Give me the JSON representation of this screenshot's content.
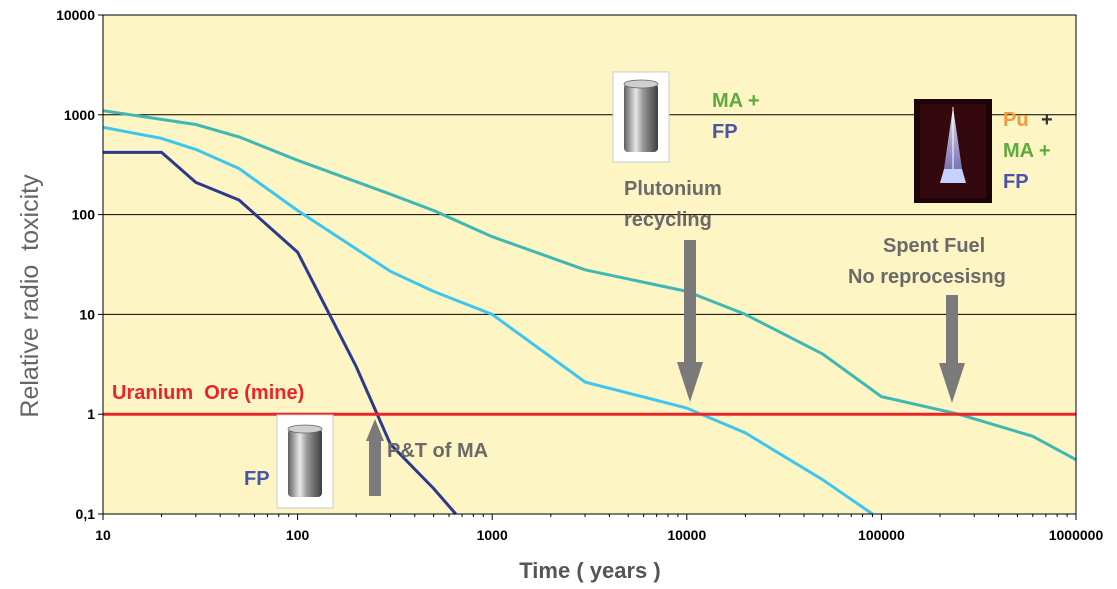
{
  "chart_data": {
    "type": "line",
    "xscale": "log",
    "yscale": "log",
    "xlim": [
      10,
      1000000
    ],
    "ylim": [
      0.1,
      10000
    ],
    "xlabel": "Time ( years )",
    "ylabel": "Relative radio  toxicity",
    "x_ticks": [
      "10",
      "100",
      "1000",
      "10000",
      "100000",
      "1000000"
    ],
    "y_ticks": [
      "0,1",
      "1",
      "10",
      "100",
      "1000",
      "10000"
    ],
    "grid": "horizontal",
    "colors": {
      "plot_bg": "#fdf5c4",
      "fp": "#2b3a8f",
      "pu_recycling": "#3ec6ee",
      "spent_fuel": "#3fb7b4",
      "ore": "#e8262a",
      "arrow": "#7a7a7a",
      "fp_text": "#4a55a8",
      "ma_text": "#5dab3c",
      "pu_text": "#f39a3c",
      "grey_text": "#6a6a6a"
    },
    "series": [
      {
        "key": "fp",
        "points": [
          [
            10,
            420
          ],
          [
            20,
            420
          ],
          [
            30,
            210
          ],
          [
            50,
            140
          ],
          [
            100,
            42
          ],
          [
            200,
            3
          ],
          [
            300,
            0.5
          ],
          [
            500,
            0.18
          ],
          [
            650,
            0.1
          ]
        ]
      },
      {
        "key": "pu_recycling",
        "points": [
          [
            10,
            750
          ],
          [
            20,
            580
          ],
          [
            30,
            450
          ],
          [
            50,
            290
          ],
          [
            100,
            110
          ],
          [
            300,
            27
          ],
          [
            500,
            17
          ],
          [
            1000,
            10
          ],
          [
            3000,
            2.1
          ],
          [
            10000,
            1.15
          ],
          [
            20000,
            0.65
          ],
          [
            50000,
            0.22
          ],
          [
            90000,
            0.1
          ]
        ]
      },
      {
        "key": "spent_fuel",
        "points": [
          [
            10,
            1100
          ],
          [
            30,
            800
          ],
          [
            50,
            600
          ],
          [
            100,
            350
          ],
          [
            300,
            160
          ],
          [
            500,
            110
          ],
          [
            1000,
            60
          ],
          [
            3000,
            28
          ],
          [
            10000,
            17
          ],
          [
            20000,
            10
          ],
          [
            50000,
            4
          ],
          [
            100000,
            1.5
          ],
          [
            250000,
            1
          ],
          [
            600000,
            0.6
          ],
          [
            1000000,
            0.35
          ]
        ]
      }
    ],
    "ore_level": 1,
    "annotations": {
      "ore_label": "Uranium  Ore (mine)",
      "pt_label": "P&T of MA",
      "fp_label": "FP",
      "pu_recycling_line1": "Plutonium",
      "pu_recycling_line2": "recycling",
      "ma_label": "MA +",
      "fp_label2": "FP",
      "spent_fuel_line1": "Spent Fuel",
      "spent_fuel_line2": "No reprocesisng",
      "pu_label": "Pu",
      "plus": "+",
      "ma_label2": "MA +",
      "fp_label3": "FP"
    },
    "pictures": [
      "fuel-canister-picture",
      "fuel-canister-picture",
      "fuel-assembly-picture"
    ]
  }
}
